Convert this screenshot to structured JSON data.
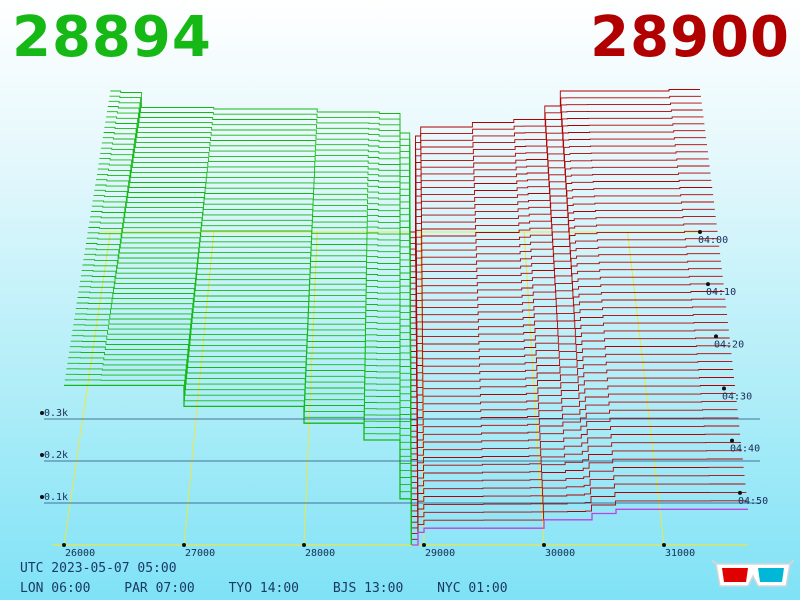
{
  "header": {
    "bid_price": "28894",
    "ask_price": "28900",
    "bid_color": "#16b816",
    "ask_color": "#b00000"
  },
  "footer": {
    "utc_label": "UTC 2023-05-07 05:00",
    "zones": [
      "LON 06:00",
      "PAR 07:00",
      "TYO 14:00",
      "BJS 13:00",
      "NYC 01:00"
    ]
  },
  "glasses_icon": "3d-glasses-icon",
  "chart_data": {
    "type": "area",
    "style": "3d-depth-chart",
    "x_ticks": [
      {
        "label": "26000",
        "value": 26000
      },
      {
        "label": "27000",
        "value": 27000
      },
      {
        "label": "28000",
        "value": 28000
      },
      {
        "label": "29000",
        "value": 29000
      },
      {
        "label": "30000",
        "value": 30000
      },
      {
        "label": "31000",
        "value": 31000
      }
    ],
    "y_ticks": [
      {
        "label": "0.1k",
        "value": 100
      },
      {
        "label": "0.2k",
        "value": 200
      },
      {
        "label": "0.3k",
        "value": 300
      }
    ],
    "time_ticks": [
      {
        "label": "04:00",
        "minutes_before_now": 60
      },
      {
        "label": "04:10",
        "minutes_before_now": 50
      },
      {
        "label": "04:20",
        "minutes_before_now": 40
      },
      {
        "label": "04:30",
        "minutes_before_now": 30
      },
      {
        "label": "04:40",
        "minutes_before_now": 20
      },
      {
        "label": "04:50",
        "minutes_before_now": 10
      }
    ],
    "xlim": [
      25900,
      31700
    ],
    "series": [
      {
        "side": "bid",
        "color": "#16b816",
        "current_depth": [
          [
            26000,
            380
          ],
          [
            27000,
            330
          ],
          [
            28000,
            290
          ],
          [
            28500,
            250
          ],
          [
            28800,
            110
          ],
          [
            28894,
            0
          ]
        ],
        "oldest_depth": [
          [
            26000,
            470
          ],
          [
            26100,
            465
          ],
          [
            26300,
            415
          ],
          [
            27000,
            410
          ],
          [
            28000,
            400
          ],
          [
            28600,
            395
          ],
          [
            28800,
            330
          ],
          [
            28894,
            0
          ]
        ]
      },
      {
        "side": "ask",
        "color": "#b00000",
        "current_depth": [
          [
            28900,
            0
          ],
          [
            28950,
            30
          ],
          [
            29000,
            40
          ],
          [
            30000,
            60
          ],
          [
            30400,
            75
          ],
          [
            30600,
            85
          ],
          [
            31700,
            85
          ]
        ],
        "oldest_depth": [
          [
            28900,
            0
          ],
          [
            28950,
            320
          ],
          [
            29000,
            350
          ],
          [
            29500,
            365
          ],
          [
            29900,
            375
          ],
          [
            30200,
            420
          ],
          [
            30350,
            470
          ],
          [
            31400,
            475
          ],
          [
            31700,
            475
          ]
        ]
      }
    ]
  }
}
